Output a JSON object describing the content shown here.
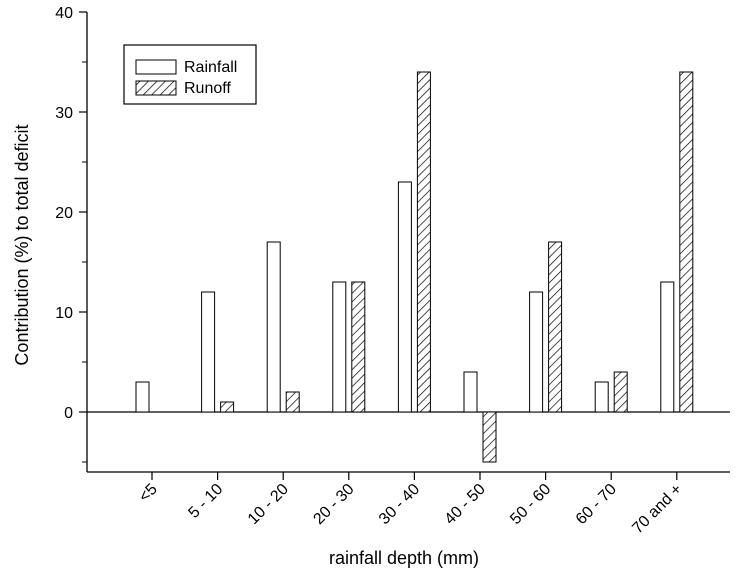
{
  "chart_data": {
    "type": "bar",
    "title": "",
    "xlabel": "rainfall depth (mm)",
    "ylabel": "Contribution (%) to total deficit",
    "ylim": [
      -6,
      40
    ],
    "yticks": [
      0,
      10,
      20,
      30,
      40
    ],
    "categories": [
      "<5",
      "5 - 10",
      "10 - 20",
      "20 - 30",
      "30 - 40",
      "40 - 50",
      "50 - 60",
      "60 - 70",
      "70 and +"
    ],
    "series": [
      {
        "name": "Rainfall",
        "pattern": "open",
        "values": [
          3,
          12,
          17,
          13,
          23,
          4,
          12,
          3,
          13
        ]
      },
      {
        "name": "Runoff",
        "pattern": "hatched",
        "values": [
          0,
          1,
          2,
          13,
          34,
          -5,
          17,
          4,
          34
        ]
      }
    ],
    "legend_position": "top-left",
    "grid": false
  }
}
